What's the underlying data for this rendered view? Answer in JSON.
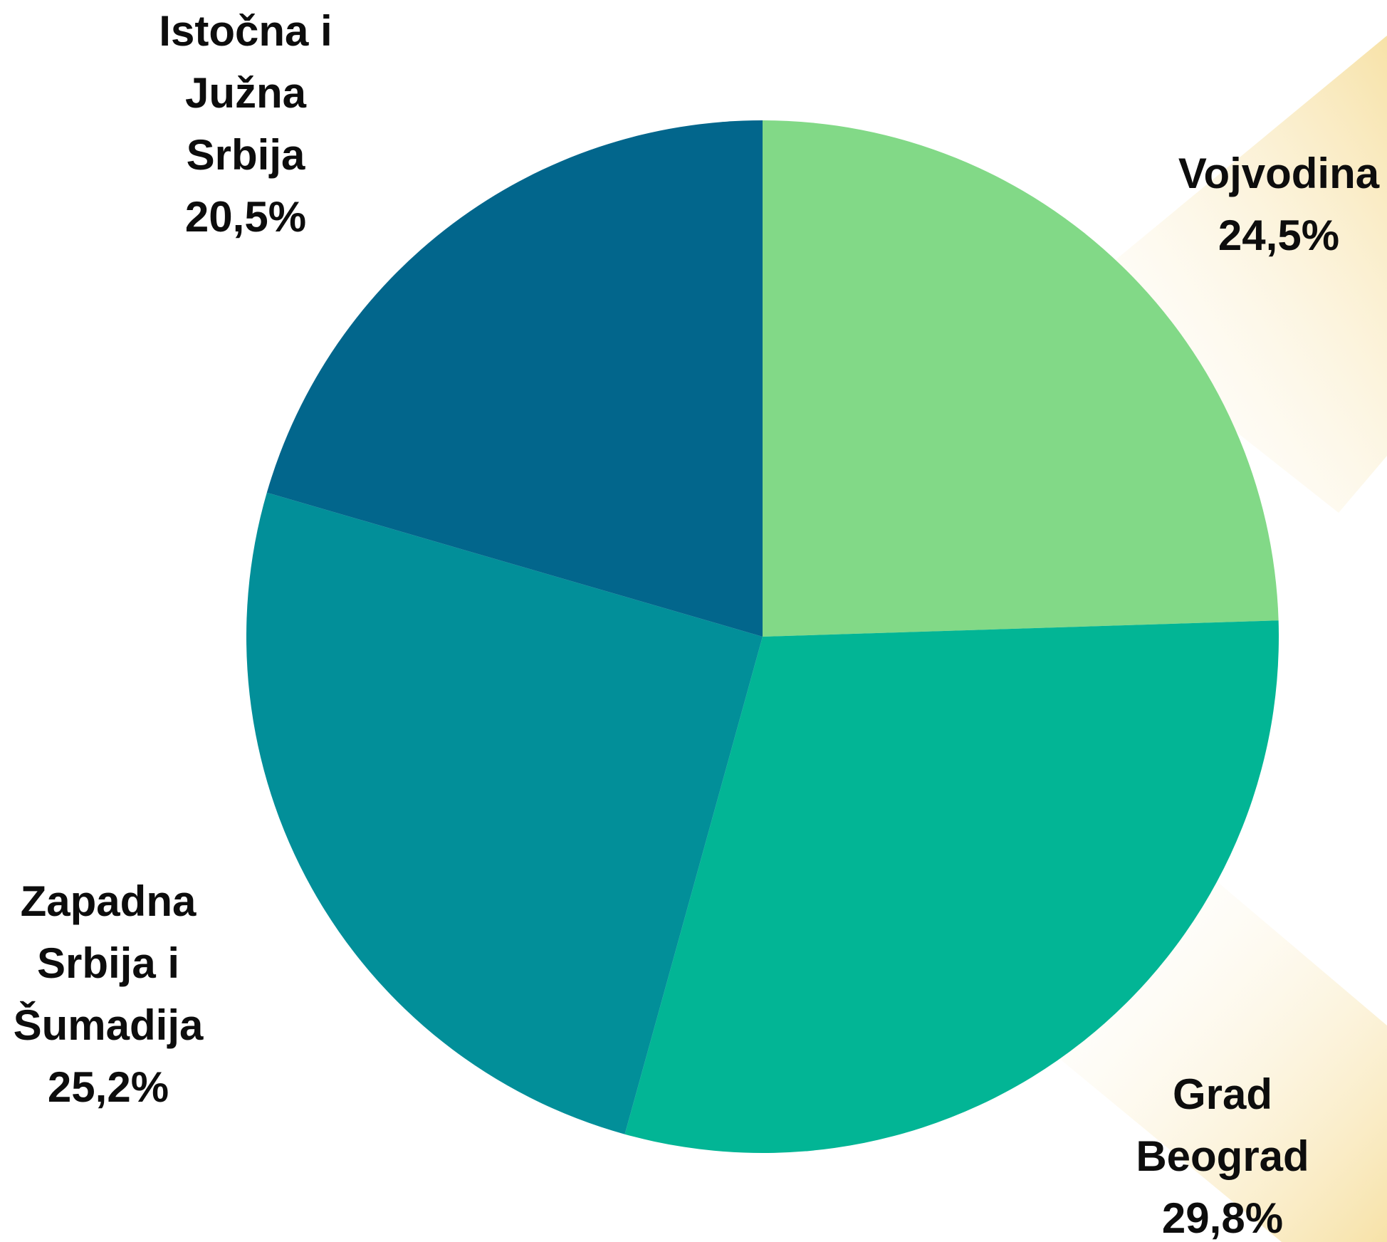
{
  "chart_data": {
    "type": "pie",
    "categories": [
      "Vojvodina",
      "Grad Beograd",
      "Zapadna Srbija i Šumadija",
      "Istočna i Južna Srbija"
    ],
    "values": [
      24.5,
      29.8,
      25.2,
      20.5
    ],
    "value_labels": [
      "24,5%",
      "29,8%",
      "25,2%",
      "20,5%"
    ],
    "colors": [
      "#82d987",
      "#02b595",
      "#028f99",
      "#02668c"
    ]
  }
}
